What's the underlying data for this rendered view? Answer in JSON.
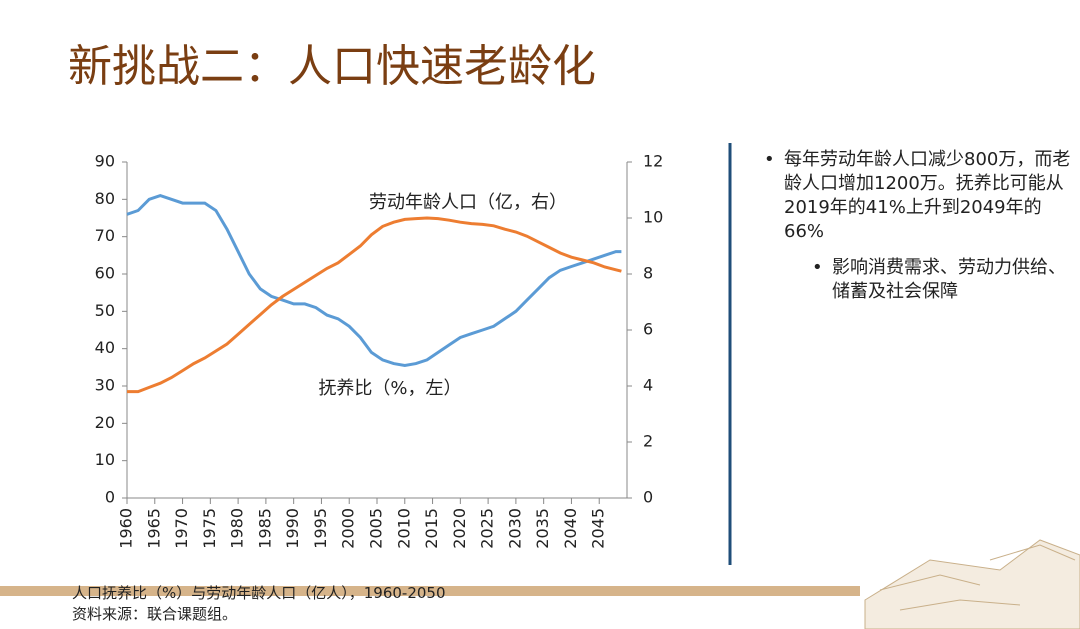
{
  "slide_title": "新挑战二：人口快速老龄化",
  "bullets": [
    {
      "text": "每年劳动年龄人口减少800万，而老龄人口增加1200万。抚养比可能从2019年的41%上升到2049年的66%",
      "sub": [
        "影响消费需求、劳动力供给、储蓄及社会保障"
      ]
    }
  ],
  "caption": [
    "人口抚养比（%）与劳动年龄人口（亿人），1960-2050",
    "资料来源：联合课题组。"
  ],
  "chart_data": {
    "type": "line",
    "x": [
      1960,
      1962,
      1964,
      1966,
      1968,
      1970,
      1972,
      1974,
      1976,
      1978,
      1980,
      1982,
      1984,
      1986,
      1988,
      1990,
      1992,
      1994,
      1996,
      1998,
      2000,
      2002,
      2004,
      2006,
      2008,
      2010,
      2012,
      2014,
      2016,
      2018,
      2020,
      2022,
      2024,
      2026,
      2028,
      2030,
      2032,
      2034,
      2036,
      2038,
      2040,
      2042,
      2044,
      2046,
      2048,
      2049
    ],
    "series": [
      {
        "name": "抚养比（%，左）",
        "color": "#5b9bd5",
        "axis": "y",
        "values": [
          76,
          77,
          80,
          81,
          80,
          79,
          79,
          79,
          77,
          72,
          66,
          60,
          56,
          54,
          53,
          52,
          52,
          51,
          49,
          48,
          46,
          43,
          39,
          37,
          36,
          35.5,
          36,
          37,
          39,
          41,
          43,
          44,
          45,
          46,
          48,
          50,
          53,
          56,
          59,
          61,
          62,
          63,
          64,
          65,
          66,
          66
        ]
      },
      {
        "name": "劳动年龄人口（亿，右）",
        "color": "#ed7d31",
        "axis": "y2",
        "values": [
          3.8,
          3.8,
          3.95,
          4.1,
          4.3,
          4.55,
          4.8,
          5.0,
          5.25,
          5.5,
          5.85,
          6.2,
          6.55,
          6.9,
          7.2,
          7.45,
          7.7,
          7.95,
          8.2,
          8.4,
          8.7,
          9.0,
          9.4,
          9.7,
          9.85,
          9.95,
          9.98,
          10.0,
          9.98,
          9.92,
          9.85,
          9.8,
          9.77,
          9.72,
          9.6,
          9.5,
          9.35,
          9.15,
          8.95,
          8.75,
          8.6,
          8.5,
          8.4,
          8.25,
          8.15,
          8.1
        ]
      }
    ],
    "xlim": [
      1960,
      2050
    ],
    "xticks": [
      1960,
      1965,
      1970,
      1975,
      1980,
      1985,
      1990,
      1995,
      2000,
      2005,
      2010,
      2015,
      2020,
      2025,
      2030,
      2035,
      2040,
      2045
    ],
    "ylim": [
      0,
      90
    ],
    "yticks": [
      0,
      10,
      20,
      30,
      40,
      50,
      60,
      70,
      80,
      90
    ],
    "y2lim": [
      0,
      12
    ],
    "y2ticks": [
      0,
      2,
      4,
      6,
      8,
      10,
      12
    ]
  }
}
